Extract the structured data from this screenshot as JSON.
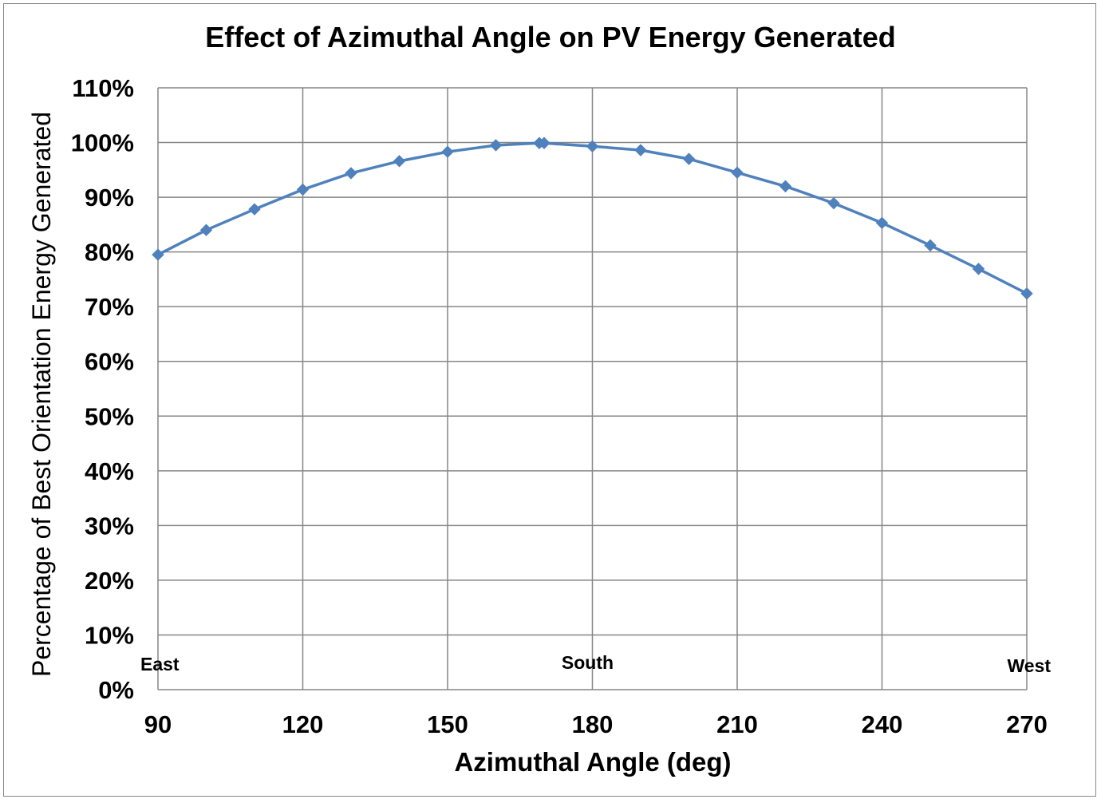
{
  "chart_data": {
    "type": "line",
    "title": "Effect of Azimuthal Angle on PV Energy Generated",
    "xlabel": "Azimuthal Angle (deg)",
    "ylabel": "Percentage of Best Orientation Energy Generated",
    "xlim": [
      90,
      270
    ],
    "ylim": [
      0,
      1.1
    ],
    "x_ticks": [
      90,
      120,
      150,
      180,
      210,
      240,
      270
    ],
    "y_ticks": [
      0,
      0.1,
      0.2,
      0.3,
      0.4,
      0.5,
      0.6,
      0.7,
      0.8,
      0.9,
      1.0,
      1.1
    ],
    "y_tick_labels": [
      "0%",
      "10%",
      "20%",
      "30%",
      "40%",
      "50%",
      "60%",
      "70%",
      "80%",
      "90%",
      "100%",
      "110%"
    ],
    "grid": true,
    "series_color": "#4F81BD",
    "series": [
      {
        "x": [
          90,
          100,
          110,
          120,
          130,
          140,
          150,
          160,
          169,
          170,
          180,
          190,
          200,
          210,
          220,
          230,
          240,
          250,
          260,
          270
        ],
        "y": [
          0.795,
          0.84,
          0.878,
          0.914,
          0.944,
          0.966,
          0.983,
          0.995,
          0.999,
          0.999,
          0.993,
          0.986,
          0.97,
          0.945,
          0.92,
          0.889,
          0.853,
          0.812,
          0.769,
          0.724
        ]
      }
    ],
    "annotations": [
      {
        "text": "East",
        "x": 90
      },
      {
        "text": "South",
        "x": 180
      },
      {
        "text": "West",
        "x": 270
      }
    ]
  }
}
